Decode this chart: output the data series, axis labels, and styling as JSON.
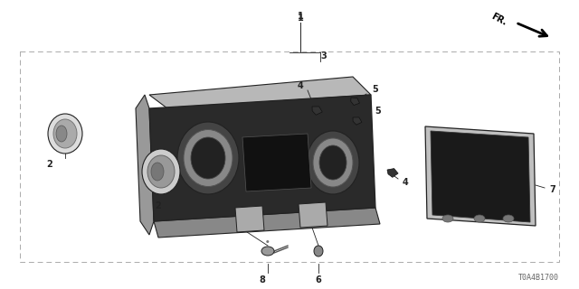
{
  "bg_color": "#ffffff",
  "lc": "#222222",
  "diagram_id": "T0A4B1700",
  "fig_w": 6.4,
  "fig_h": 3.2,
  "dpi": 100
}
